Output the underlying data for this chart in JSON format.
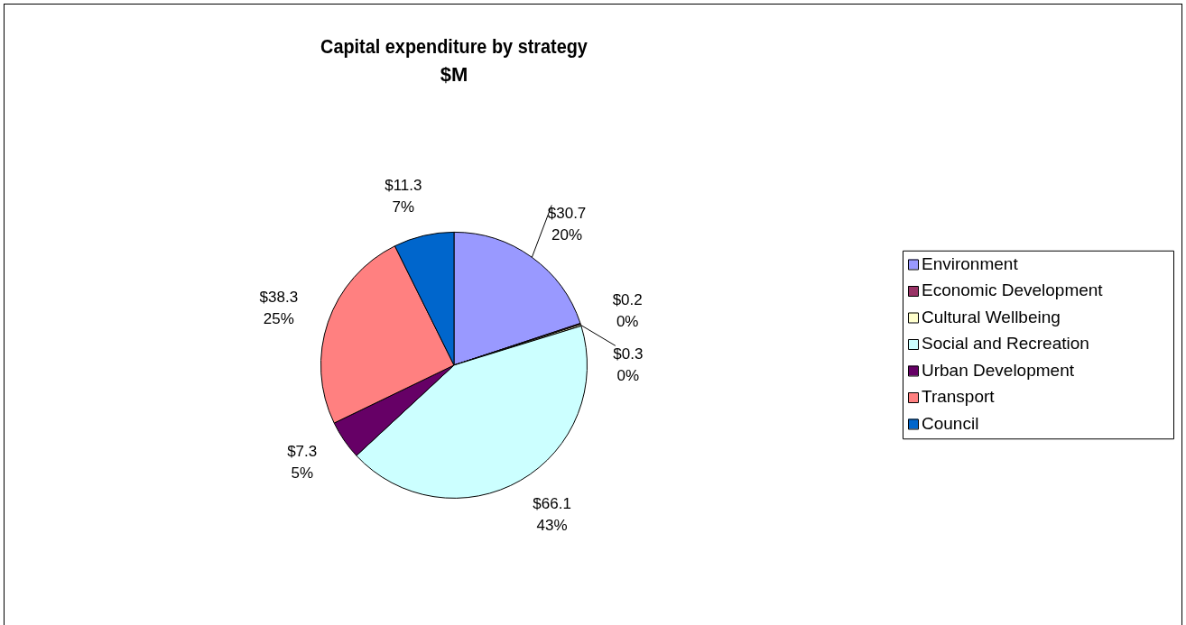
{
  "chart_data": {
    "type": "pie",
    "title": "Capital expenditure by strategy",
    "subtitle": "$M",
    "categories": [
      "Environment",
      "Economic Development",
      "Cultural Wellbeing",
      "Social and Recreation",
      "Urban Development",
      "Transport",
      "Council"
    ],
    "values": [
      30.7,
      0.2,
      0.3,
      66.1,
      7.3,
      38.3,
      11.3
    ],
    "colors": [
      "#9999ff",
      "#993366",
      "#ffffcc",
      "#ccffff",
      "#660066",
      "#ff8080",
      "#0066cc"
    ],
    "value_labels": [
      "$30.7\n20%",
      "$0.2\n0%",
      "$0.3\n0%",
      "$66.1\n43%",
      "$7.3\n5%",
      "$38.3\n25%",
      "$11.3\n7%"
    ],
    "legend": "right"
  }
}
